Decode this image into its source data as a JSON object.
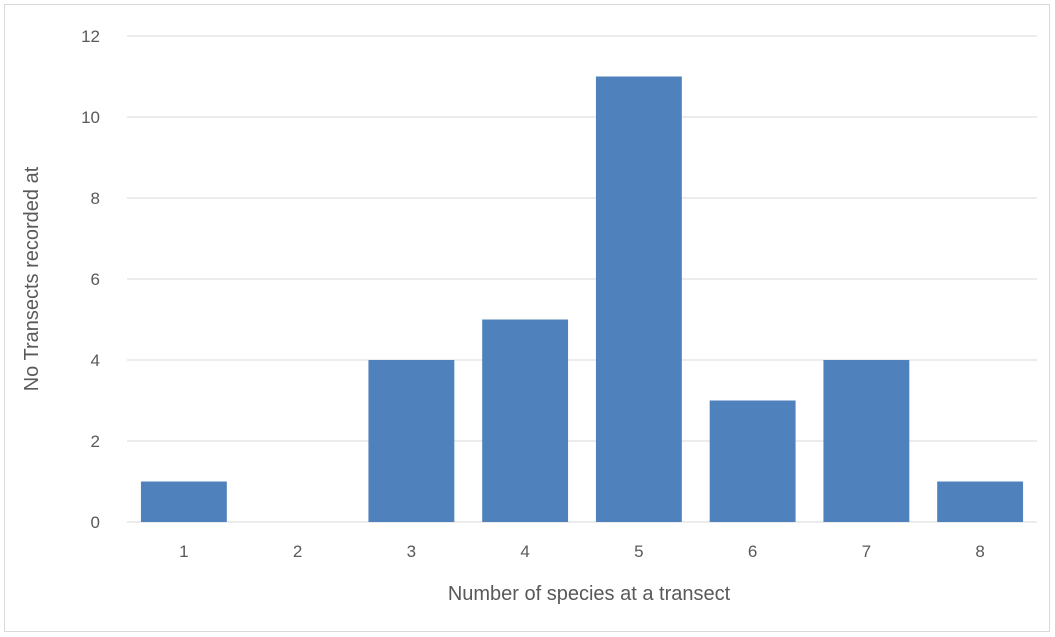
{
  "chart_data": {
    "type": "bar",
    "title": "",
    "xlabel": "Number of species at a transect",
    "ylabel": "No Transects recorded at",
    "categories": [
      "1",
      "2",
      "3",
      "4",
      "5",
      "6",
      "7",
      "8"
    ],
    "values": [
      1,
      0,
      4,
      5,
      11,
      3,
      4,
      1
    ],
    "ylim": [
      0,
      12
    ],
    "yticks": [
      "0",
      "2",
      "4",
      "6",
      "8",
      "10",
      "12"
    ],
    "grid": true,
    "legend": "none",
    "bar_color": "#4f81bd",
    "grid_color": "#d9d9d9",
    "text_color": "#595959"
  }
}
